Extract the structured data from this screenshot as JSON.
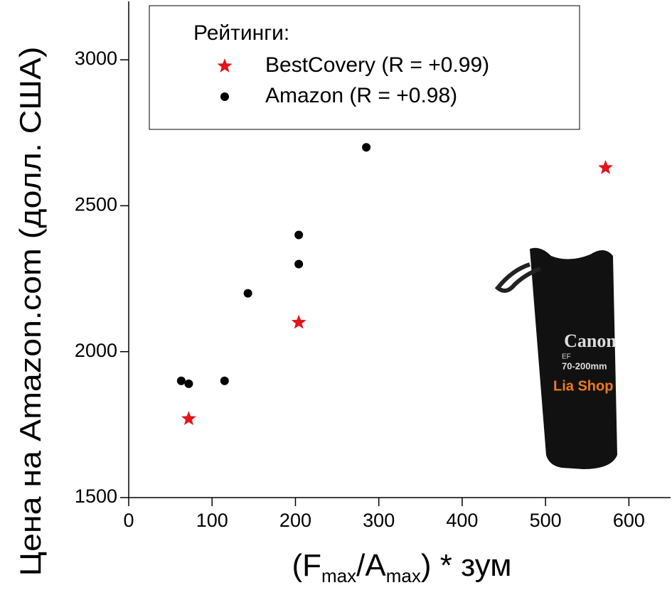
{
  "chart_data": {
    "type": "scatter",
    "y_label": "Цена на Amazon.com (долл. США)",
    "x_label": [
      "(F",
      "max",
      "/A",
      "max",
      ") * зум"
    ],
    "legend_title": "Рейтинги:",
    "legend": "top",
    "xlim": [
      0,
      650
    ],
    "xticks": [
      0,
      100,
      200,
      300,
      400,
      500,
      600
    ],
    "ylim": [
      1500,
      3200
    ],
    "yticks": [
      1500,
      2000,
      2500,
      3000
    ],
    "series": [
      {
        "name": "BestCovery (R = +0.99)",
        "color": "#e3141b",
        "marker": "star",
        "x": [
          72,
          204,
          572
        ],
        "values": [
          1770,
          2100,
          2630
        ]
      },
      {
        "name": "Amazon (R = +0.98)",
        "color": "#000000",
        "marker": "circle",
        "x": [
          63,
          72,
          115,
          143,
          204,
          204,
          285
        ],
        "values": [
          1900,
          1890,
          1900,
          2200,
          2400,
          2300,
          2700
        ]
      }
    ],
    "photo_texts": [
      "Canon",
      "EF",
      "70-200mm",
      "Lia Shop"
    ]
  }
}
